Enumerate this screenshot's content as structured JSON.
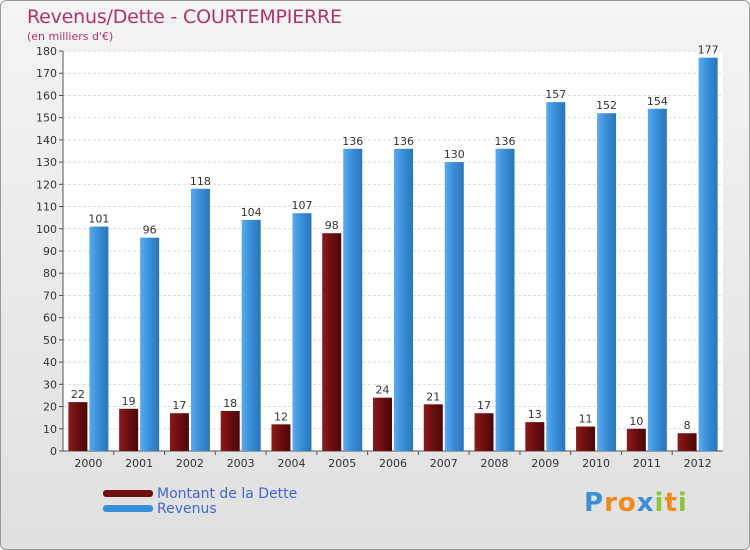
{
  "title": "Revenus/Dette - COURTEMPIERRE",
  "subtitle": "(en milliers d'€)",
  "colors": {
    "dette": "#6e0f10",
    "revenus": "#3a8fd9",
    "title": "#b0336c",
    "legend_text": "#4466cc"
  },
  "legend": [
    {
      "label": "Montant de la Dette",
      "color": "#6e0f10"
    },
    {
      "label": "Revenus",
      "color": "#3a8fd9"
    }
  ],
  "logo": {
    "text": "Proxiti",
    "letters": [
      {
        "ch": "P",
        "color": "#3b8fd6"
      },
      {
        "ch": "r",
        "color": "#f08a1c"
      },
      {
        "ch": "o",
        "color": "#f08a1c"
      },
      {
        "ch": "x",
        "color": "#3b8fd6"
      },
      {
        "ch": "i",
        "color": "#8cc63e"
      },
      {
        "ch": "t",
        "color": "#f08a1c"
      },
      {
        "ch": "i",
        "color": "#8cc63e"
      }
    ]
  },
  "chart_data": {
    "type": "bar",
    "title": "Revenus/Dette - COURTEMPIERRE",
    "ylabel": "(en milliers d'€)",
    "categories": [
      "2000",
      "2001",
      "2002",
      "2003",
      "2004",
      "2005",
      "2006",
      "2007",
      "2008",
      "2009",
      "2010",
      "2011",
      "2012"
    ],
    "series": [
      {
        "name": "Montant de la Dette",
        "color": "#6e0f10",
        "values": [
          22,
          19,
          17,
          18,
          12,
          98,
          24,
          21,
          17,
          13,
          11,
          10,
          8
        ]
      },
      {
        "name": "Revenus",
        "color": "#3a8fd9",
        "values": [
          101,
          96,
          118,
          104,
          107,
          136,
          136,
          130,
          136,
          157,
          152,
          154,
          177
        ]
      }
    ],
    "ylim": [
      0,
      180
    ],
    "yticks": [
      0,
      10,
      20,
      30,
      40,
      50,
      60,
      70,
      80,
      90,
      100,
      110,
      120,
      130,
      140,
      150,
      160,
      170,
      180
    ],
    "grid": true,
    "legend_position": "bottom-left"
  }
}
